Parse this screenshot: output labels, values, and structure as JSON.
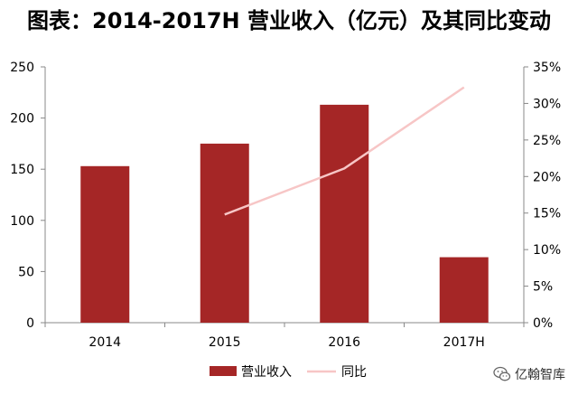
{
  "chart_data": {
    "type": "bar",
    "title": "图表：2014-2017H 营业收入（亿元）及其同比变动",
    "categories": [
      "2014",
      "2015",
      "2016",
      "2017H"
    ],
    "y_left": {
      "min": 0,
      "max": 250,
      "ticks": [
        "0",
        "50",
        "100",
        "150",
        "200",
        "250"
      ]
    },
    "y_right": {
      "min": 0,
      "max": 35,
      "ticks": [
        "0%",
        "5%",
        "10%",
        "15%",
        "20%",
        "25%",
        "30%",
        "35%"
      ]
    },
    "series": [
      {
        "name": "营业收入",
        "type": "bar",
        "axis": "left",
        "color": "#A52626",
        "values": [
          153,
          175,
          213,
          64
        ]
      },
      {
        "name": "同比",
        "type": "line",
        "axis": "right",
        "color": "#F7C6C6",
        "values": [
          null,
          14.8,
          21.1,
          32.2
        ]
      }
    ],
    "legend": {
      "position": "bottom"
    },
    "grid": false
  },
  "watermark": {
    "text": "亿翰智库",
    "icon": "wechat-icon"
  }
}
